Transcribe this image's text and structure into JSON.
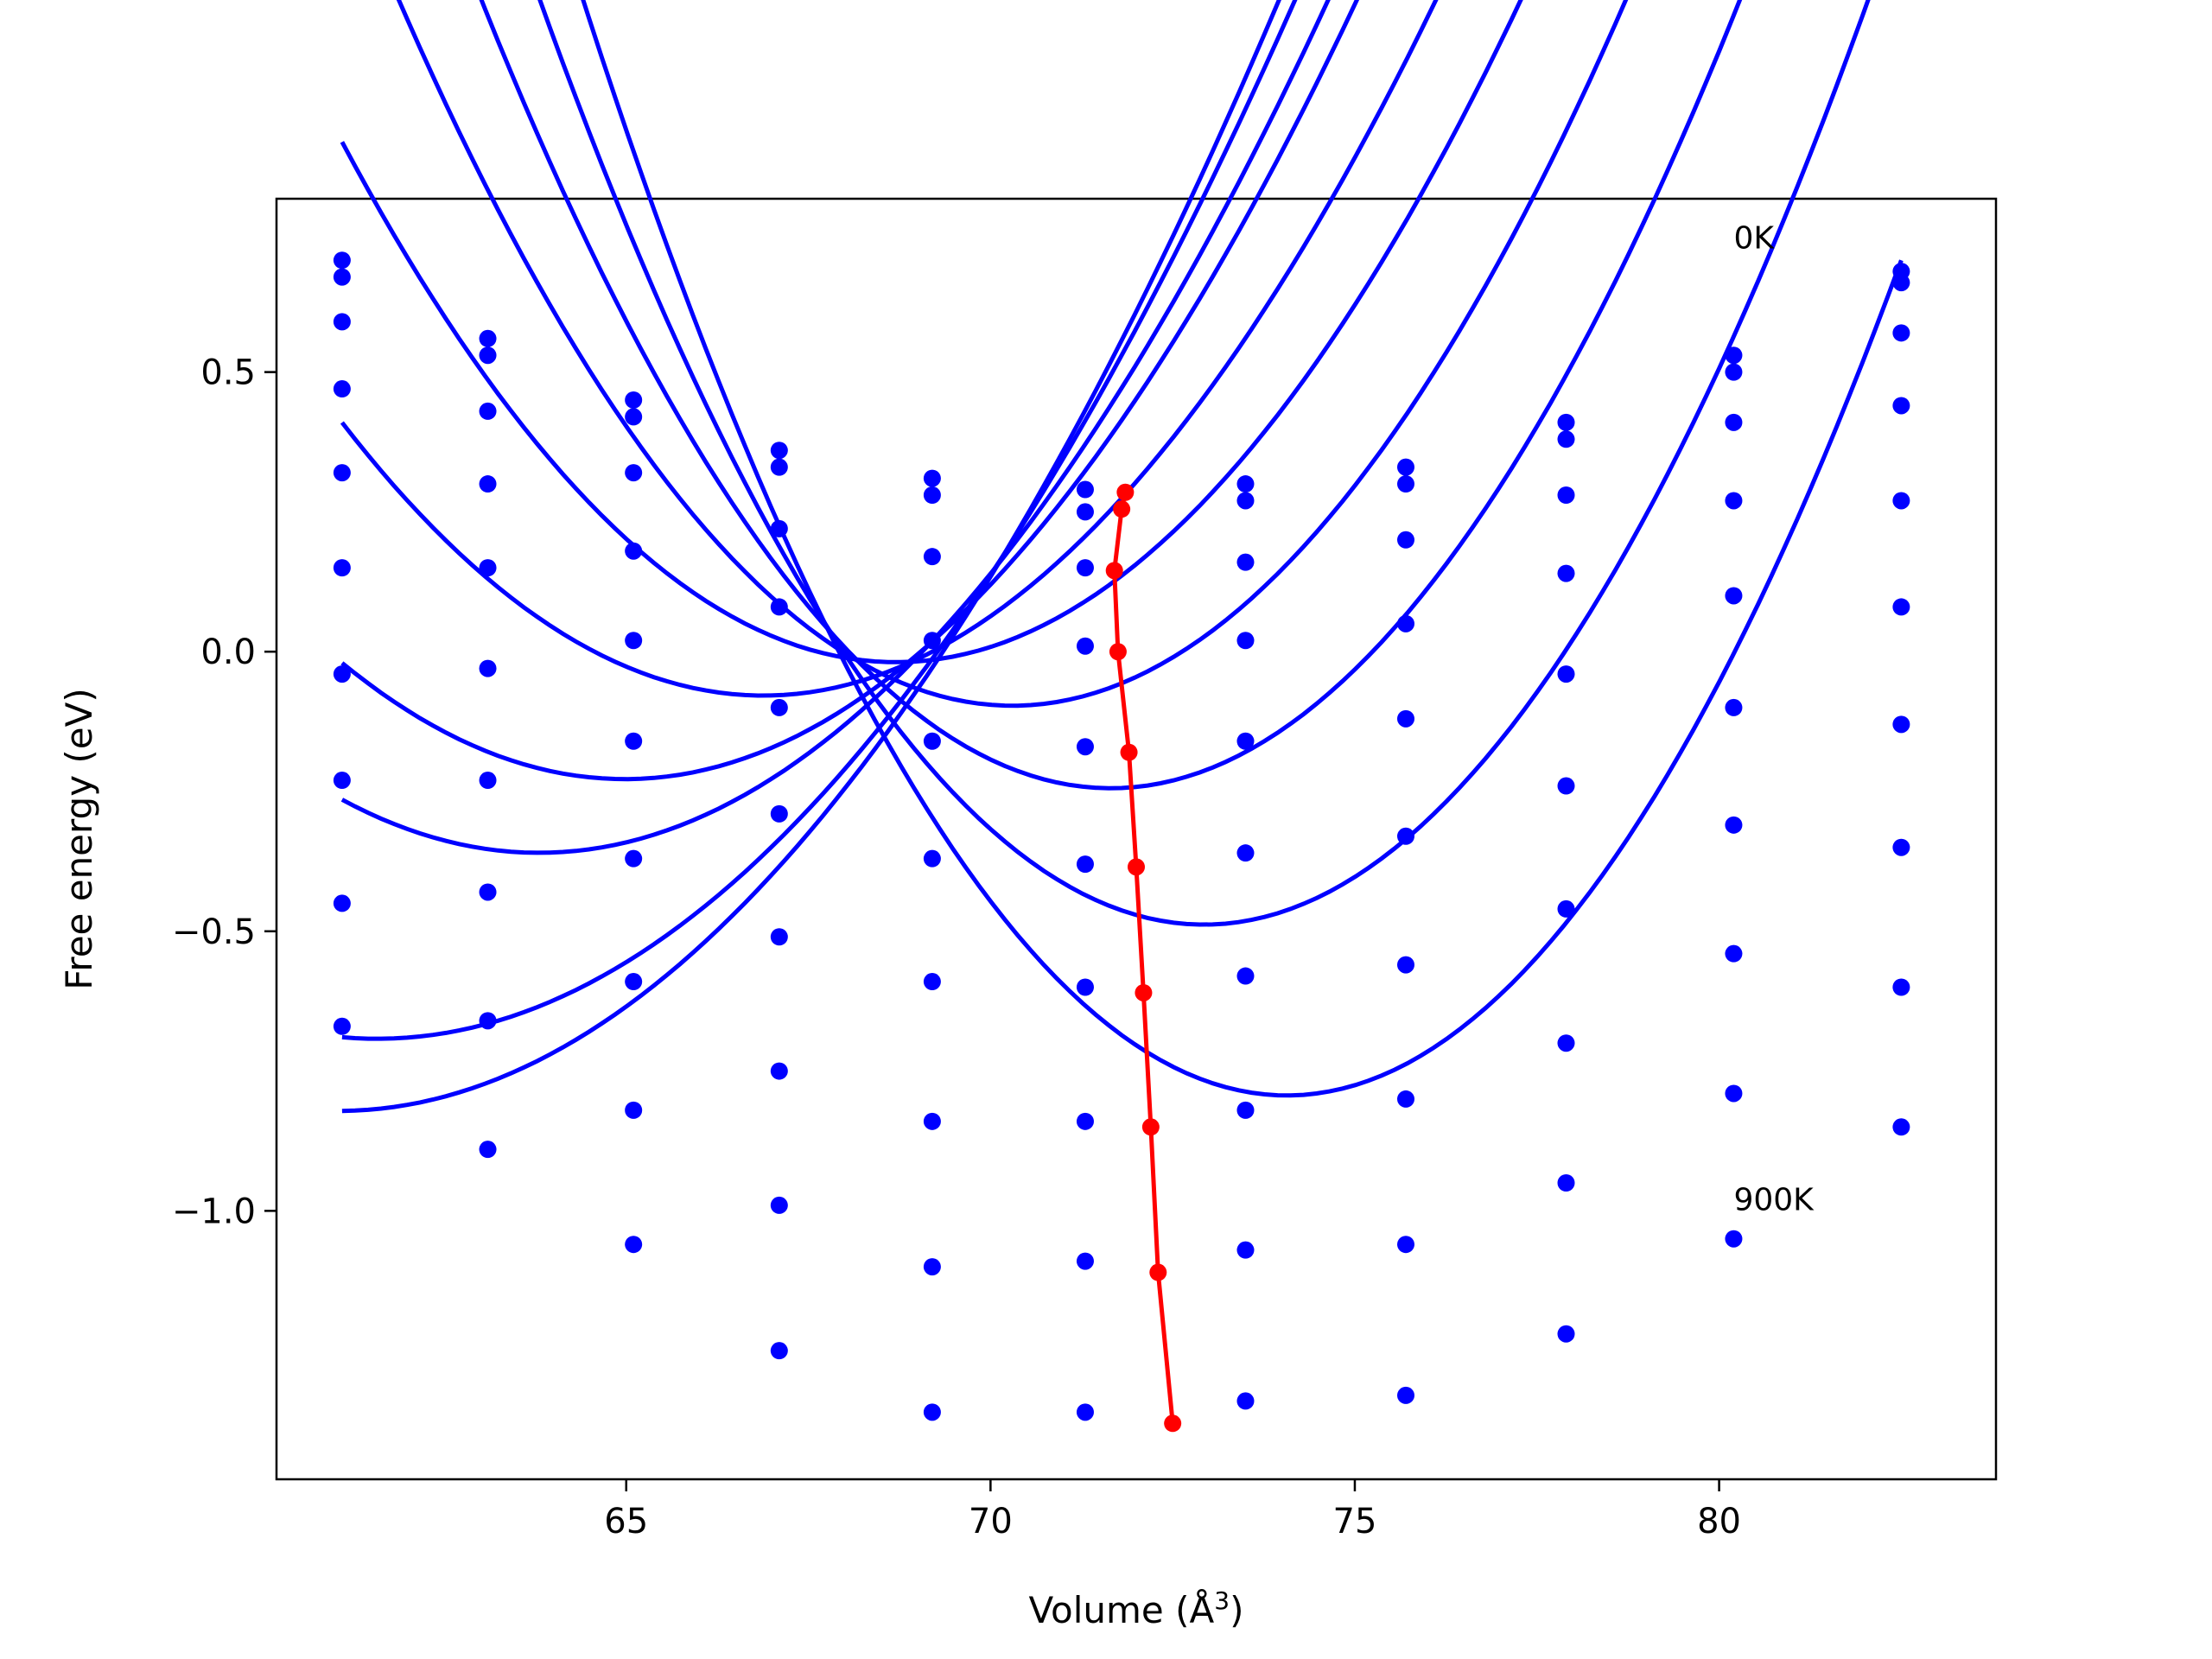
{
  "chart_data": {
    "type": "line",
    "xlabel": "Volume (Å",
    "xlabel_sup": "3",
    "xlabel_close": ")",
    "ylabel": "Free energy (eV)",
    "xlim": [
      60.2,
      83.8
    ],
    "ylim": [
      -1.48,
      0.81
    ],
    "xticks": [
      65,
      70,
      75,
      80
    ],
    "xtick_labels": [
      "65",
      "70",
      "75",
      "80"
    ],
    "yticks": [
      0.5,
      0.0,
      -0.5,
      -1.0
    ],
    "ytick_labels": [
      "0.5",
      "0.0",
      "−0.5",
      "−1.0"
    ],
    "grid": false,
    "colors": {
      "fit": "#0000ff",
      "points": "#0000ff",
      "minima": "#ff0000"
    },
    "annotations": [
      {
        "text": "0K",
        "x": 80.2,
        "y": 0.74
      },
      {
        "text": "900K",
        "x": 80.2,
        "y": -0.98
      }
    ],
    "volumes": [
      61.1,
      63.1,
      65.1,
      67.1,
      69.2,
      71.3,
      73.5,
      75.7,
      77.9,
      80.2,
      82.5
    ],
    "series": [
      {
        "points": [
          0.7,
          0.56,
          0.45,
          0.36,
          0.31,
          0.29,
          0.3,
          0.33,
          0.41,
          0.53,
          0.68
        ],
        "minimum": [
          71.85,
          0.285
        ],
        "fit": [
          0.5825,
          0.2585,
          0.0119
        ]
      },
      {
        "points": [
          0.67,
          0.53,
          0.42,
          0.33,
          0.28,
          0.25,
          0.27,
          0.3,
          0.38,
          0.5,
          0.66
        ],
        "minimum": [
          71.8,
          0.255
        ],
        "fit": [
          0.554,
          0.2415,
          0.0117
        ]
      },
      {
        "points": [
          0.59,
          0.43,
          0.32,
          0.22,
          0.17,
          0.15,
          0.16,
          0.2,
          0.28,
          0.41,
          0.57
        ],
        "minimum": [
          71.7,
          0.145
        ],
        "fit": [
          0.4925,
          0.2105,
          0.013
        ]
      },
      {
        "points": [
          0.47,
          0.3,
          0.18,
          0.08,
          0.02,
          0.01,
          0.02,
          0.05,
          0.14,
          0.27,
          0.44
        ],
        "minimum": [
          71.75,
          0.0
        ],
        "fit": [
          0.433,
          0.191,
          0.0138
        ]
      },
      {
        "points": [
          0.32,
          0.15,
          0.02,
          -0.1,
          -0.16,
          -0.17,
          -0.16,
          -0.12,
          -0.04,
          0.1,
          0.27
        ],
        "minimum": [
          71.9,
          -0.18
        ],
        "fit": [
          0.289,
          0.1465,
          0.0146
        ]
      },
      {
        "points": [
          0.15,
          -0.03,
          -0.16,
          -0.29,
          -0.37,
          -0.38,
          -0.36,
          -0.33,
          -0.24,
          -0.1,
          0.08
        ],
        "minimum": [
          72.0,
          -0.385
        ],
        "fit": [
          0.146,
          0.103,
          0.0161
        ]
      },
      {
        "points": [
          -0.04,
          -0.23,
          -0.37,
          -0.51,
          -0.59,
          -0.6,
          -0.58,
          -0.56,
          -0.46,
          -0.31,
          -0.13
        ],
        "minimum": [
          72.1,
          -0.61
        ],
        "fit": [
          -0.051,
          0.057,
          0.0178
        ]
      },
      {
        "points": [
          -0.23,
          -0.43,
          -0.59,
          -0.75,
          -0.84,
          -0.84,
          -0.82,
          -0.8,
          -0.7,
          -0.54,
          -0.35
        ],
        "minimum": [
          72.2,
          -0.85
        ],
        "fit": [
          -0.243,
          0.0095,
          0.0189
        ]
      },
      {
        "points": [
          -0.45,
          -0.66,
          -0.82,
          -0.99,
          -1.1,
          -1.09,
          -1.07,
          -1.06,
          -0.95,
          -0.79,
          -0.6
        ],
        "minimum": [
          72.3,
          -1.11
        ],
        "fit": [
          -0.467,
          -0.041,
          0.0199
        ]
      },
      {
        "points": [
          -0.67,
          -0.89,
          -1.06,
          -1.25,
          -1.36,
          -1.36,
          -1.34,
          -1.33,
          -1.22,
          -1.05,
          -0.85
        ],
        "minimum": [
          72.5,
          -1.38
        ],
        "fit": [
          -0.695,
          -0.091,
          0.021
        ]
      }
    ]
  }
}
